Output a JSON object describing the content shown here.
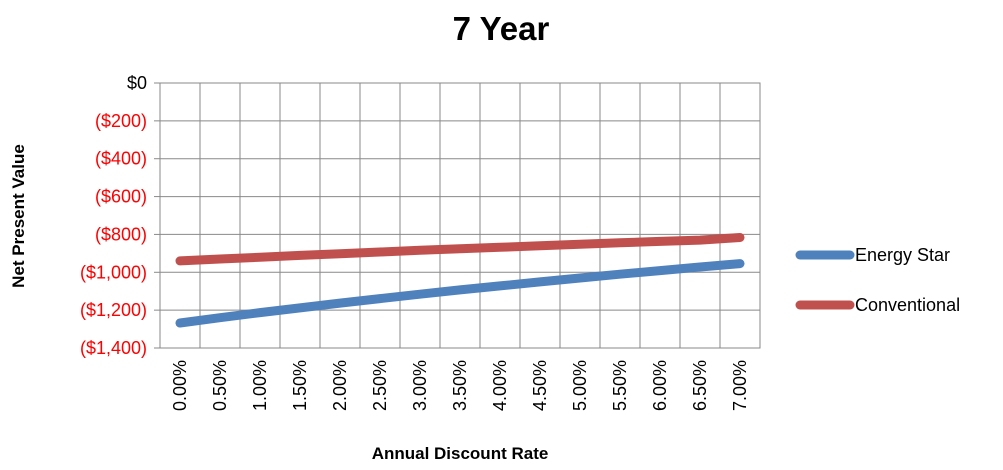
{
  "chart_data": {
    "type": "line",
    "title": "7 Year",
    "xlabel": "Annual Discount Rate",
    "ylabel": "Net Present Value",
    "categories": [
      "0.00%",
      "0.50%",
      "1.00%",
      "1.50%",
      "2.00%",
      "2.50%",
      "3.00%",
      "3.50%",
      "4.00%",
      "4.50%",
      "5.00%",
      "5.50%",
      "6.00%",
      "6.50%",
      "7.00%"
    ],
    "ylim": [
      -1400,
      0
    ],
    "yticks": [
      0,
      -200,
      -400,
      -600,
      -800,
      -1000,
      -1200,
      -1400
    ],
    "ytick_labels": [
      "$0",
      "($200)",
      "($400)",
      "($600)",
      "($800)",
      "($1,000)",
      "($1,200)",
      "($1,400)"
    ],
    "negative_tick_color": "#ff0000",
    "grid": true,
    "legend_position": "right",
    "series": [
      {
        "name": "Energy Star",
        "color": "#4f81bd",
        "values": [
          -1268,
          -1240,
          -1213,
          -1188,
          -1163,
          -1139,
          -1116,
          -1093,
          -1072,
          -1051,
          -1030,
          -1010,
          -991,
          -972,
          -954
        ]
      },
      {
        "name": "Conventional",
        "color": "#c0504d",
        "values": [
          -940,
          -930,
          -921,
          -911,
          -902,
          -893,
          -884,
          -876,
          -868,
          -860,
          -852,
          -844,
          -837,
          -830,
          -816
        ]
      }
    ]
  }
}
